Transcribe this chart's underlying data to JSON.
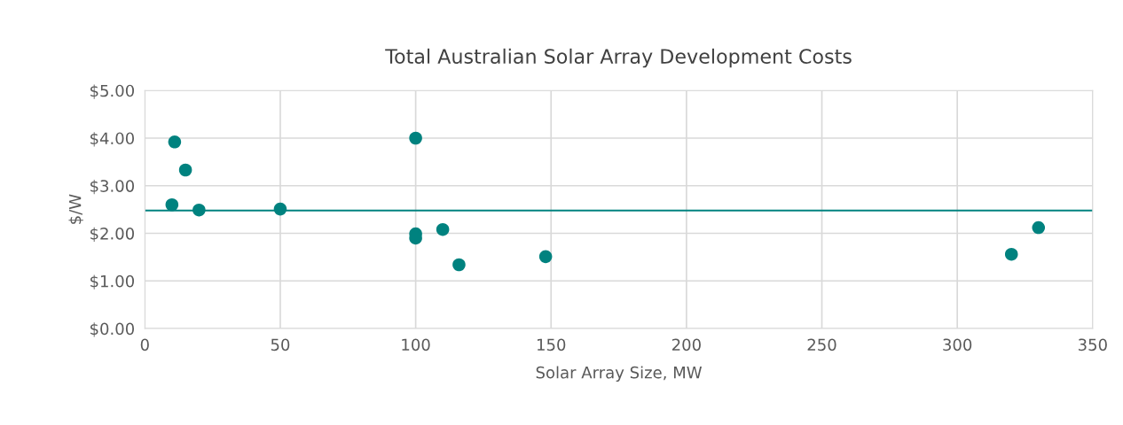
{
  "chart_data": {
    "type": "scatter",
    "title": "Total Australian Solar Array Development Costs",
    "xlabel": "Solar Array Size, MW",
    "ylabel": "$/W",
    "x": [
      11,
      15,
      10,
      20,
      50,
      100,
      100,
      100,
      110,
      116,
      148,
      320,
      330
    ],
    "values": [
      3.92,
      3.33,
      2.6,
      2.49,
      2.51,
      4.0,
      1.99,
      1.9,
      2.08,
      1.34,
      1.51,
      1.56,
      2.12
    ],
    "color": "#00827f",
    "marker": "circle",
    "xlim": [
      0,
      350
    ],
    "xticks": [
      0,
      50,
      100,
      150,
      200,
      250,
      300,
      350
    ],
    "ylim": [
      0,
      5
    ],
    "yticks": [
      {
        "value": 0,
        "label": "$0.00"
      },
      {
        "value": 1,
        "label": "$1.00"
      },
      {
        "value": 2,
        "label": "$2.00"
      },
      {
        "value": 3,
        "label": "$3.00"
      },
      {
        "value": 4,
        "label": "$4.00"
      },
      {
        "value": 5,
        "label": "$5.00"
      }
    ],
    "ref_lines": [
      {
        "axis": "y",
        "value": 2.48,
        "color": "#00827f",
        "line_style": "solid"
      }
    ],
    "grid": true
  }
}
